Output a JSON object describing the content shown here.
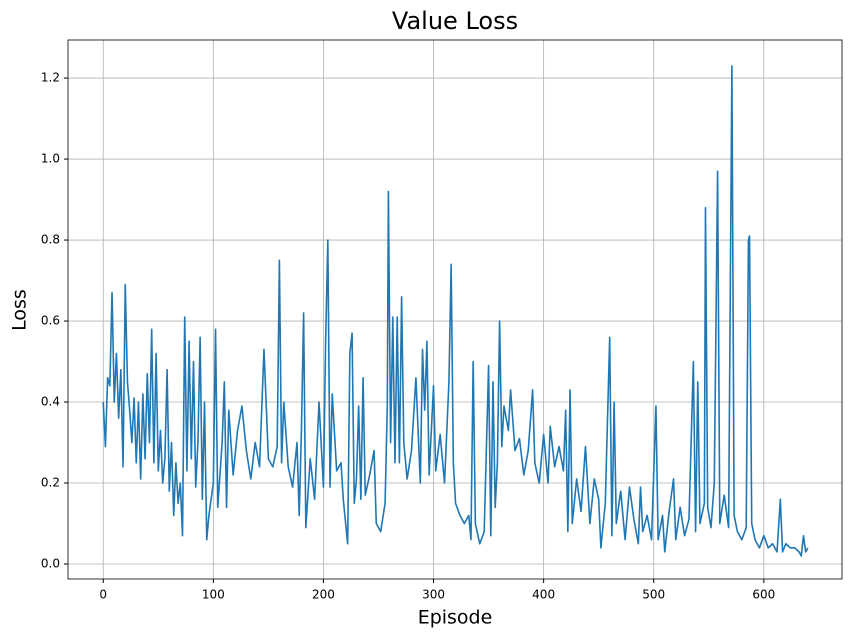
{
  "chart_data": {
    "type": "line",
    "title": "Value Loss",
    "xlabel": "Episode",
    "ylabel": "Loss",
    "x": [
      0,
      2,
      4,
      6,
      8,
      10,
      12,
      14,
      16,
      18,
      20,
      22,
      24,
      26,
      28,
      30,
      32,
      34,
      36,
      38,
      40,
      42,
      44,
      46,
      48,
      50,
      52,
      54,
      56,
      58,
      60,
      62,
      64,
      66,
      68,
      70,
      72,
      74,
      76,
      78,
      80,
      82,
      84,
      86,
      88,
      90,
      92,
      94,
      96,
      100,
      102,
      104,
      108,
      110,
      112,
      114,
      118,
      122,
      126,
      130,
      134,
      138,
      142,
      146,
      150,
      154,
      158,
      160,
      162,
      164,
      168,
      172,
      176,
      178,
      180,
      182,
      184,
      188,
      192,
      196,
      200,
      202,
      204,
      206,
      208,
      212,
      216,
      218,
      222,
      224,
      226,
      228,
      230,
      232,
      234,
      236,
      238,
      242,
      246,
      248,
      252,
      256,
      258,
      259,
      261,
      263,
      265,
      267,
      269,
      271,
      273,
      276,
      280,
      284,
      288,
      290,
      292,
      294,
      296,
      300,
      302,
      306,
      310,
      314,
      316,
      318,
      320,
      324,
      328,
      332,
      334,
      336,
      338,
      342,
      346,
      350,
      352,
      354,
      356,
      358,
      360,
      362,
      364,
      368,
      370,
      374,
      378,
      382,
      386,
      390,
      392,
      396,
      400,
      404,
      406,
      410,
      414,
      418,
      420,
      422,
      424,
      426,
      430,
      434,
      438,
      442,
      446,
      450,
      452,
      456,
      460,
      462,
      464,
      466,
      470,
      474,
      478,
      482,
      486,
      488,
      490,
      494,
      498,
      502,
      504,
      508,
      510,
      514,
      518,
      520,
      524,
      528,
      532,
      536,
      538,
      540,
      542,
      546,
      547,
      549,
      552,
      555,
      558,
      560,
      564,
      568,
      571,
      573,
      576,
      580,
      584,
      586,
      587,
      589,
      592,
      596,
      600,
      604,
      608,
      612,
      615,
      617,
      620,
      624,
      628,
      632,
      634,
      636,
      638,
      640
    ],
    "series": [
      {
        "name": "Value Loss",
        "color": "#1f77b4",
        "values": [
          0.4,
          0.29,
          0.46,
          0.44,
          0.67,
          0.4,
          0.52,
          0.36,
          0.48,
          0.24,
          0.69,
          0.45,
          0.38,
          0.3,
          0.41,
          0.25,
          0.4,
          0.21,
          0.42,
          0.26,
          0.47,
          0.3,
          0.58,
          0.25,
          0.52,
          0.23,
          0.33,
          0.2,
          0.26,
          0.48,
          0.18,
          0.3,
          0.12,
          0.25,
          0.15,
          0.2,
          0.07,
          0.61,
          0.23,
          0.55,
          0.26,
          0.5,
          0.19,
          0.3,
          0.56,
          0.16,
          0.4,
          0.06,
          0.12,
          0.2,
          0.58,
          0.14,
          0.3,
          0.45,
          0.14,
          0.38,
          0.22,
          0.33,
          0.39,
          0.28,
          0.21,
          0.3,
          0.24,
          0.53,
          0.26,
          0.24,
          0.29,
          0.75,
          0.25,
          0.4,
          0.24,
          0.19,
          0.3,
          0.12,
          0.33,
          0.62,
          0.09,
          0.26,
          0.16,
          0.4,
          0.19,
          0.55,
          0.8,
          0.19,
          0.42,
          0.23,
          0.25,
          0.16,
          0.05,
          0.52,
          0.57,
          0.15,
          0.21,
          0.39,
          0.16,
          0.46,
          0.17,
          0.22,
          0.28,
          0.1,
          0.08,
          0.15,
          0.39,
          0.92,
          0.3,
          0.61,
          0.25,
          0.61,
          0.25,
          0.66,
          0.3,
          0.21,
          0.28,
          0.46,
          0.2,
          0.53,
          0.38,
          0.55,
          0.22,
          0.44,
          0.23,
          0.32,
          0.2,
          0.45,
          0.74,
          0.25,
          0.15,
          0.12,
          0.1,
          0.12,
          0.06,
          0.5,
          0.1,
          0.05,
          0.08,
          0.49,
          0.07,
          0.45,
          0.14,
          0.25,
          0.6,
          0.29,
          0.39,
          0.33,
          0.43,
          0.28,
          0.31,
          0.22,
          0.28,
          0.43,
          0.25,
          0.2,
          0.32,
          0.2,
          0.34,
          0.24,
          0.29,
          0.23,
          0.38,
          0.08,
          0.43,
          0.1,
          0.21,
          0.13,
          0.29,
          0.1,
          0.21,
          0.16,
          0.04,
          0.15,
          0.56,
          0.07,
          0.4,
          0.1,
          0.18,
          0.06,
          0.19,
          0.11,
          0.05,
          0.19,
          0.08,
          0.12,
          0.06,
          0.39,
          0.06,
          0.12,
          0.03,
          0.13,
          0.21,
          0.06,
          0.14,
          0.07,
          0.11,
          0.5,
          0.08,
          0.45,
          0.1,
          0.15,
          0.88,
          0.14,
          0.09,
          0.2,
          0.97,
          0.1,
          0.17,
          0.09,
          1.23,
          0.12,
          0.08,
          0.06,
          0.09,
          0.8,
          0.81,
          0.1,
          0.06,
          0.04,
          0.07,
          0.04,
          0.05,
          0.03,
          0.16,
          0.03,
          0.05,
          0.04,
          0.04,
          0.03,
          0.02,
          0.07,
          0.03,
          0.04
        ]
      }
    ],
    "xlim": [
      -32,
      671
    ],
    "ylim": [
      -0.037,
      1.294
    ],
    "xticks": [
      0,
      100,
      200,
      300,
      400,
      500,
      600
    ],
    "yticks": [
      {
        "value": 0,
        "label": "0.0"
      },
      0.2,
      0.4,
      0.6,
      0.8,
      {
        "value": 1,
        "label": "1.0"
      },
      1.2
    ],
    "grid": true
  }
}
